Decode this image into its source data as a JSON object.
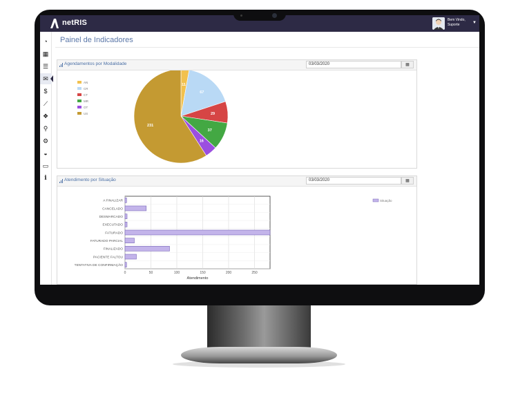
{
  "app": {
    "name": "netRIS"
  },
  "user": {
    "greeting": "Bem Vindo,",
    "name": "Suporte"
  },
  "sidebar": {
    "items": [
      {
        "icon": "dashboard-icon",
        "glyph": "◔"
      },
      {
        "icon": "calendar-icon",
        "glyph": "▦"
      },
      {
        "icon": "list-icon",
        "glyph": "☰"
      },
      {
        "icon": "envelope-icon",
        "glyph": "✉"
      },
      {
        "icon": "dollar-icon",
        "glyph": "$"
      },
      {
        "icon": "line-chart-icon",
        "glyph": "⟋"
      },
      {
        "icon": "cubes-icon",
        "glyph": "❖"
      },
      {
        "icon": "search-icon",
        "glyph": "⚲"
      },
      {
        "icon": "cogs-icon",
        "glyph": "⚙"
      },
      {
        "icon": "tachometer-icon",
        "glyph": "◒"
      },
      {
        "icon": "monitor-icon",
        "glyph": "▭"
      },
      {
        "icon": "info-icon",
        "glyph": "i"
      }
    ]
  },
  "page": {
    "title": "Painel de Indicadores"
  },
  "panels": {
    "modalidade": {
      "title": "Agendamentos por Modalidade",
      "date": "03/03/2020"
    },
    "situacao": {
      "title": "Atendimento por Situação",
      "date": "03/03/2020"
    }
  },
  "colors": {
    "topbar": "#2d2a45",
    "bar_fill": "#c3b4ea",
    "bar_stroke": "#7a68b8"
  },
  "chart_data": [
    {
      "type": "pie",
      "title": "Agendamentos por Modalidade",
      "legend_position": "top-left",
      "slices": [
        {
          "label": "AN",
          "value": 11,
          "color": "#f2c14e"
        },
        {
          "label": "CR",
          "value": 67,
          "color": "#b9d9f5"
        },
        {
          "label": "CT",
          "value": 29,
          "color": "#d64545"
        },
        {
          "label": "MR",
          "value": 37,
          "color": "#43a843"
        },
        {
          "label": "OT",
          "value": 16,
          "color": "#9b4fe0"
        },
        {
          "label": "US",
          "value": 231,
          "color": "#c49a32"
        }
      ]
    },
    {
      "type": "bar",
      "orientation": "horizontal",
      "title": "Atendimento por Situação",
      "xlabel": "Atendimento",
      "xlim": [
        0,
        280
      ],
      "xticks": [
        0,
        50,
        100,
        150,
        200,
        250
      ],
      "grid": true,
      "legend_position": "top-right",
      "series": [
        {
          "name": "Situação",
          "values": [
            3,
            41,
            4,
            4,
            280,
            18,
            86,
            22,
            3
          ]
        }
      ],
      "categories": [
        "A FINALIZAR",
        "CANCELADO",
        "DESMARCADO",
        "EXECUTADO",
        "FATURADO",
        "FATURADO PARCIAL",
        "FINALIZADO",
        "PACIENTE FALTOU",
        "TENTATIVA DE CONFIRMAÇÃO"
      ]
    }
  ]
}
